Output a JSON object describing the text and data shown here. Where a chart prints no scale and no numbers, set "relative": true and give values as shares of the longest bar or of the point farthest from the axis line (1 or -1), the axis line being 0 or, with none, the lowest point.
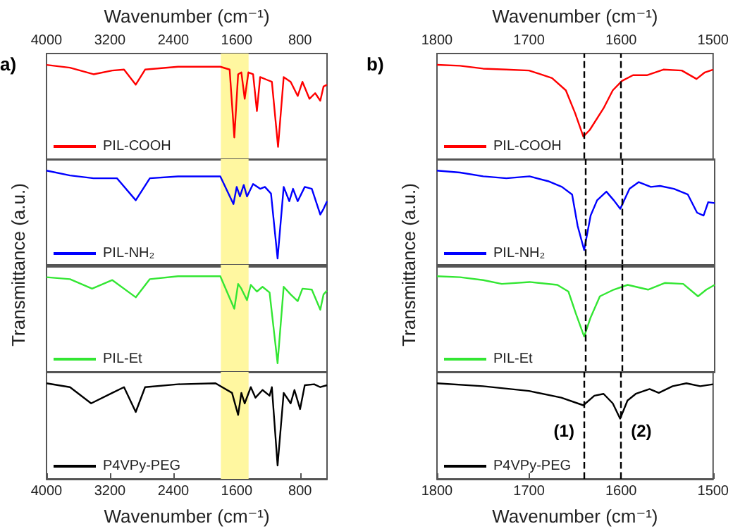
{
  "chart_data": [
    {
      "type": "line",
      "relative": true,
      "xlim": [
        4000,
        460
      ],
      "tick_labels": "x2",
      "x2lim": [
        4000,
        460
      ],
      "x2ticks": [
        4000,
        3200,
        2400,
        1600,
        800
      ],
      "x2label": "Wavenumber (cm⁻¹)",
      "annotations": [
        "a)"
      ],
      "legend": "bottom left",
      "bands": [
        {
          "axis": "x",
          "from": 1800,
          "to": 1450,
          "color": "#fff7a0"
        }
      ],
      "x": [
        4000,
        3704,
        3407,
        3170,
        3022,
        2874,
        2756,
        2340,
        1807,
        1689,
        1630,
        1582,
        1541,
        1499,
        1452,
        1393,
        1345,
        1304,
        1215,
        1156,
        1078,
        1007,
        919,
        830,
        770,
        682,
        610,
        545,
        504,
        460
      ],
      "series": [
        {
          "name": "PIL-COOH",
          "color": "#ff0000",
          "values": [
            1.0,
            0.97,
            0.9,
            0.94,
            0.95,
            0.79,
            0.95,
            0.98,
            0.98,
            0.95,
            0.23,
            0.9,
            0.92,
            0.64,
            0.92,
            0.9,
            0.51,
            0.87,
            0.84,
            0.82,
            0.13,
            0.87,
            0.82,
            0.67,
            0.82,
            0.64,
            0.7,
            0.62,
            0.77,
            0.79
          ]
        }
      ]
    },
    {
      "type": "line",
      "relative": true,
      "xlim": [
        4000,
        460
      ],
      "tick_labels": false,
      "legend": "bottom left",
      "ylabel": "Transmittance (a.u.)",
      "bands": [
        {
          "axis": "x",
          "from": 1800,
          "to": 1450,
          "color": "#fff7a0"
        }
      ],
      "x": [
        4000,
        3704,
        3407,
        3111,
        2874,
        2696,
        2341,
        1807,
        1641,
        1600,
        1559,
        1511,
        1470,
        1393,
        1304,
        1244,
        1167,
        1084,
        1007,
        936,
        889,
        830,
        741,
        652,
        545,
        504,
        460
      ],
      "series": [
        {
          "name": "PIL-NH₂",
          "color": "#0000ff",
          "values": [
            1.0,
            0.95,
            0.92,
            0.92,
            0.69,
            0.92,
            0.94,
            0.94,
            0.65,
            0.83,
            0.73,
            0.85,
            0.73,
            0.86,
            0.81,
            0.83,
            0.76,
            0.08,
            0.83,
            0.68,
            0.81,
            0.68,
            0.83,
            0.81,
            0.54,
            0.6,
            0.68
          ]
        }
      ]
    },
    {
      "type": "line",
      "relative": true,
      "xlim": [
        4000,
        460
      ],
      "tick_labels": false,
      "legend": "bottom left",
      "bands": [
        {
          "axis": "x",
          "from": 1800,
          "to": 1450,
          "color": "#fff7a0"
        }
      ],
      "x": [
        4000,
        3704,
        3425,
        3170,
        2874,
        2696,
        2341,
        1807,
        1630,
        1582,
        1541,
        1470,
        1422,
        1345,
        1274,
        1185,
        1084,
        1007,
        919,
        830,
        770,
        652,
        545,
        504,
        460
      ],
      "series": [
        {
          "name": "PIL-Et",
          "color": "#33e633",
          "values": [
            0.99,
            0.97,
            0.87,
            0.96,
            0.78,
            0.97,
            1.0,
            1.0,
            0.66,
            0.92,
            0.87,
            0.75,
            0.91,
            0.84,
            0.89,
            0.83,
            0.09,
            0.89,
            0.81,
            0.74,
            0.87,
            0.86,
            0.65,
            0.81,
            0.85
          ]
        }
      ]
    },
    {
      "type": "line",
      "relative": true,
      "xlim": [
        4000,
        460
      ],
      "xticks": [
        4000,
        3200,
        2400,
        1600,
        800
      ],
      "xlabel": "Wavenumber (cm⁻¹)",
      "legend": "bottom left",
      "bands": [
        {
          "axis": "x",
          "from": 1800,
          "to": 1450,
          "color": "#fff7a0"
        }
      ],
      "x": [
        4000,
        3704,
        3437,
        3170,
        3022,
        2874,
        2756,
        2341,
        1867,
        1659,
        1582,
        1541,
        1499,
        1422,
        1363,
        1274,
        1185,
        1156,
        1084,
        1007,
        919,
        871,
        800,
        741,
        622,
        545,
        460
      ],
      "series": [
        {
          "name": "P4VPy-PEG",
          "color": "#000000",
          "values": [
            1.0,
            0.96,
            0.79,
            0.9,
            0.96,
            0.7,
            0.96,
            0.99,
            1.0,
            0.9,
            0.67,
            0.9,
            0.79,
            0.96,
            0.85,
            0.93,
            0.87,
            0.96,
            0.14,
            0.9,
            0.79,
            0.93,
            0.73,
            0.98,
            0.99,
            0.96,
            0.98
          ]
        }
      ]
    },
    {
      "type": "line",
      "relative": true,
      "xlim": [
        1800,
        1500
      ],
      "tick_labels": "x2",
      "x2lim": [
        1800,
        1500
      ],
      "x2ticks": [
        1800,
        1700,
        1600,
        1500
      ],
      "x2label": "Wavenumber (cm⁻¹)",
      "annotations": [
        "b)"
      ],
      "legend": "bottom left",
      "ref_lines": [
        {
          "axis": "x",
          "value": 1640,
          "color": "#000000",
          "line_style": "dashed"
        },
        {
          "axis": "x",
          "value": 1600,
          "color": "#000000",
          "line_style": "dashed"
        }
      ],
      "x": [
        1800,
        1775,
        1750,
        1725,
        1700,
        1675,
        1660,
        1650,
        1641,
        1634,
        1619,
        1609,
        1599,
        1587,
        1572,
        1554,
        1534,
        1518,
        1509,
        1500
      ],
      "series": [
        {
          "name": "PIL-COOH",
          "color": "#ff0000",
          "values": [
            1.0,
            0.99,
            0.96,
            0.95,
            0.94,
            0.86,
            0.73,
            0.49,
            0.24,
            0.31,
            0.54,
            0.73,
            0.83,
            0.89,
            0.89,
            0.95,
            0.94,
            0.85,
            0.92,
            0.95
          ]
        }
      ]
    },
    {
      "type": "line",
      "relative": true,
      "xlim": [
        1800,
        1500
      ],
      "tick_labels": false,
      "legend": "bottom left",
      "ylabel": "Transmittance (a.u.)",
      "ref_lines": [
        {
          "axis": "x",
          "value": 1640,
          "color": "#000000",
          "line_style": "dashed"
        },
        {
          "axis": "x",
          "value": 1600,
          "color": "#000000",
          "line_style": "dashed"
        }
      ],
      "x": [
        1800,
        1775,
        1750,
        1725,
        1700,
        1680,
        1665,
        1654,
        1648,
        1641,
        1634,
        1627,
        1617,
        1609,
        1602,
        1592,
        1582,
        1569,
        1559,
        1544,
        1529,
        1519,
        1512,
        1507,
        1500
      ],
      "series": [
        {
          "name": "PIL-NH₂",
          "color": "#0000ff",
          "values": [
            1.0,
            0.98,
            0.94,
            0.92,
            0.94,
            0.89,
            0.83,
            0.75,
            0.42,
            0.17,
            0.53,
            0.69,
            0.78,
            0.69,
            0.6,
            0.81,
            0.88,
            0.83,
            0.84,
            0.81,
            0.75,
            0.56,
            0.53,
            0.67,
            0.66
          ]
        }
      ]
    },
    {
      "type": "line",
      "relative": true,
      "xlim": [
        1800,
        1500
      ],
      "tick_labels": false,
      "legend": "bottom left",
      "ref_lines": [
        {
          "axis": "x",
          "value": 1640,
          "color": "#000000",
          "line_style": "dashed"
        },
        {
          "axis": "x",
          "value": 1600,
          "color": "#000000",
          "line_style": "dashed"
        }
      ],
      "x": [
        1800,
        1775,
        1750,
        1730,
        1700,
        1670,
        1658,
        1650,
        1641,
        1634,
        1624,
        1609,
        1594,
        1572,
        1554,
        1534,
        1518,
        1509,
        1500
      ],
      "series": [
        {
          "name": "PIL-Et",
          "color": "#33e633",
          "values": [
            1.0,
            0.99,
            0.96,
            0.92,
            0.94,
            0.91,
            0.84,
            0.61,
            0.37,
            0.57,
            0.79,
            0.86,
            0.91,
            0.86,
            0.93,
            0.92,
            0.79,
            0.86,
            0.91
          ]
        }
      ]
    },
    {
      "type": "line",
      "relative": true,
      "xlim": [
        1800,
        1500
      ],
      "xticks": [
        1800,
        1700,
        1600,
        1500
      ],
      "xlabel": "Wavenumber (cm⁻¹)",
      "legend": "bottom left",
      "ref_lines": [
        {
          "axis": "x",
          "value": 1640,
          "color": "#000000",
          "line_style": "dashed"
        },
        {
          "axis": "x",
          "value": 1600,
          "color": "#000000",
          "line_style": "dashed"
        }
      ],
      "annotations": [
        {
          "text": "(1)",
          "x": 1640,
          "y": 0.5
        },
        {
          "text": "(2)",
          "x": 1600,
          "y": 0.5
        }
      ],
      "x": [
        1800,
        1750,
        1700,
        1665,
        1641,
        1629,
        1619,
        1609,
        1601,
        1593,
        1584,
        1569,
        1559,
        1544,
        1529,
        1514,
        1500
      ],
      "series": [
        {
          "name": "P4VPy-PEG",
          "color": "#000000",
          "values": [
            1.0,
            0.97,
            0.92,
            0.85,
            0.77,
            0.87,
            0.89,
            0.79,
            0.63,
            0.82,
            0.89,
            0.94,
            0.9,
            0.97,
            1.0,
            0.97,
            0.99
          ]
        }
      ]
    }
  ]
}
